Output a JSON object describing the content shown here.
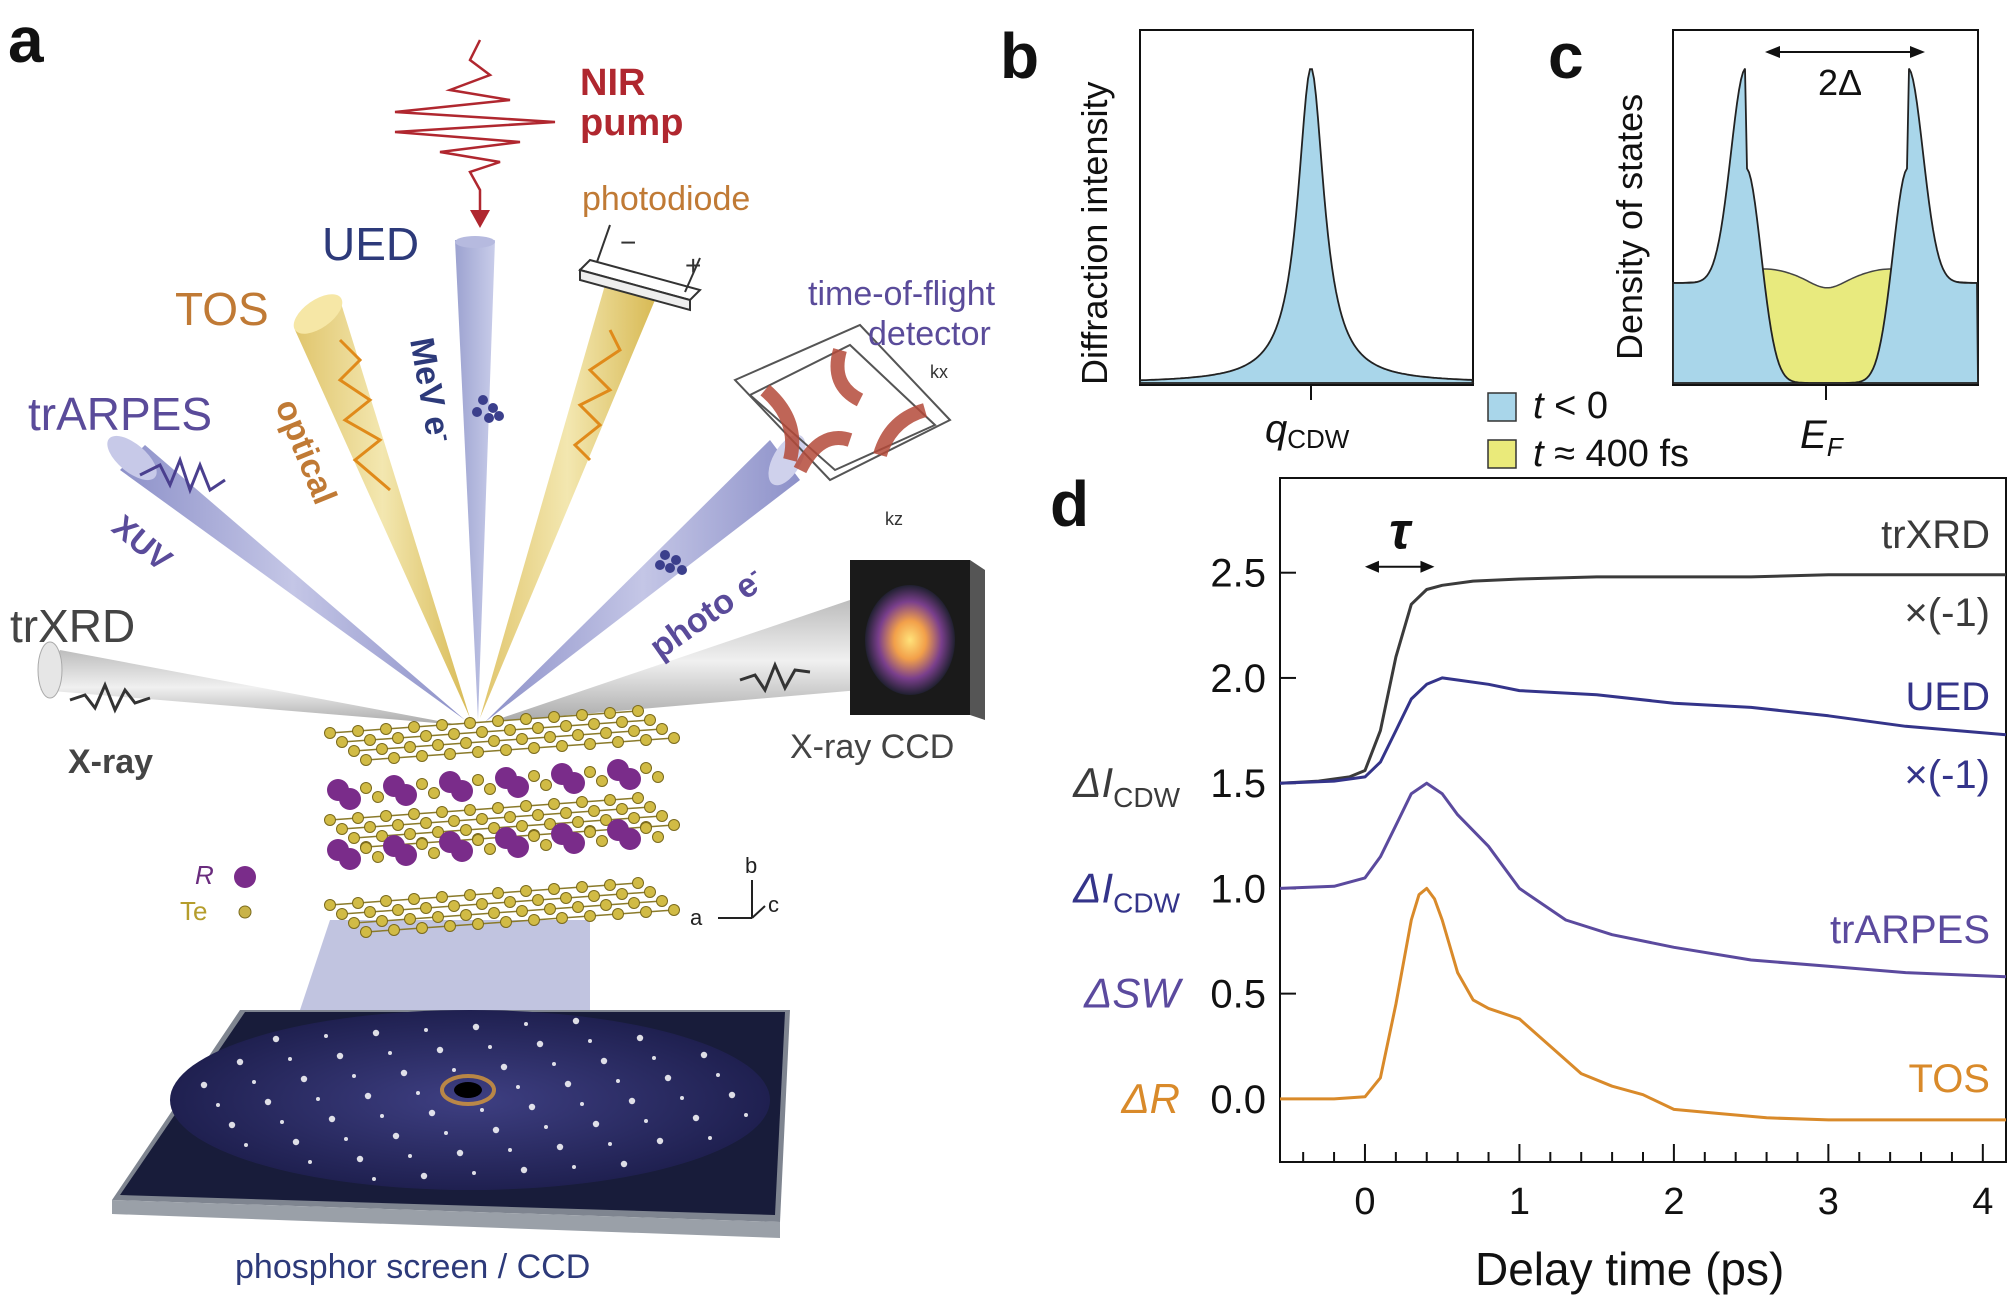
{
  "panel_labels": {
    "a": "a",
    "b": "b",
    "c": "c",
    "d": "d"
  },
  "panel_a": {
    "pump_line1": "NIR",
    "pump_line2": "pump",
    "photodiode": "photodiode",
    "ued": "UED",
    "mev": "MeV e",
    "mev_sup": "-",
    "tos": "TOS",
    "optical": "optical",
    "trarpes": "trARPES",
    "xuv": "XUV",
    "tof_line1": "time-of-flight",
    "tof_line2": "detector",
    "photo_e": "photo e",
    "photo_e_sup": "-",
    "trxrd": "trXRD",
    "xray": "X-ray",
    "xray_ccd": "X-ray CCD",
    "legend_r": "R",
    "legend_te": "Te",
    "axis_b": "b",
    "axis_a": "a",
    "axis_c": "c",
    "kx": "kx",
    "kz": "kz",
    "minus": "−",
    "plus": "+",
    "screen": "phosphor screen / CCD",
    "colors": {
      "pump": "#b0272f",
      "ued": "#2d3a7a",
      "tos": "#c07a35",
      "arpes": "#5a4b9a",
      "xrd": "#444444",
      "screen": "#2d3a7a"
    }
  },
  "panel_b": {
    "ylabel": "Diffraction intensity",
    "xlabel_main": "q",
    "xlabel_sub": "CDW"
  },
  "panel_c": {
    "ylabel": "Density of states",
    "gap": "2Δ",
    "xlabel_main": "E",
    "xlabel_sub": "F"
  },
  "legend_bc": [
    {
      "label_t": "t",
      "label_rest": " < 0",
      "color": "#a9d6ea"
    },
    {
      "label_t": "t",
      "label_rest": " ≈ 400 fs",
      "color": "#eaea7a"
    }
  ],
  "chart_data": {
    "type": "line",
    "xlabel": "Delay time (ps)",
    "xlim": [
      -0.55,
      4.15
    ],
    "ylim": [
      -0.3,
      2.95
    ],
    "xticks": [
      "0",
      "1",
      "2",
      "3",
      "4"
    ],
    "yticks": [
      "0.0",
      "0.5",
      "1.0",
      "1.5",
      "2.0",
      "2.5"
    ],
    "tau_label": "τ",
    "series": [
      {
        "name": "trXRD",
        "note": "×(-1)",
        "ylabel_main": "ΔI",
        "ylabel_sub": "CDW",
        "color": "#3b3b3b",
        "x": [
          -0.55,
          -0.3,
          -0.1,
          0.0,
          0.1,
          0.2,
          0.3,
          0.4,
          0.5,
          0.7,
          1.0,
          1.5,
          2.0,
          2.5,
          3.0,
          3.5,
          4.15
        ],
        "y": [
          1.5,
          1.51,
          1.53,
          1.56,
          1.75,
          2.1,
          2.35,
          2.42,
          2.44,
          2.46,
          2.47,
          2.48,
          2.48,
          2.48,
          2.49,
          2.49,
          2.49
        ]
      },
      {
        "name": "UED",
        "note": "×(-1)",
        "ylabel_main": "ΔI",
        "ylabel_sub": "CDW",
        "color": "#34348a",
        "x": [
          -0.55,
          -0.2,
          0.0,
          0.1,
          0.2,
          0.3,
          0.4,
          0.5,
          0.6,
          0.8,
          1.0,
          1.5,
          2.0,
          2.5,
          3.0,
          3.5,
          4.15
        ],
        "y": [
          1.5,
          1.51,
          1.53,
          1.6,
          1.75,
          1.9,
          1.97,
          2.0,
          1.99,
          1.97,
          1.94,
          1.92,
          1.88,
          1.86,
          1.82,
          1.77,
          1.73
        ]
      },
      {
        "name": "trARPES",
        "ylabel_main": "ΔSW",
        "color": "#5b4a9e",
        "x": [
          -0.55,
          -0.2,
          0.0,
          0.1,
          0.2,
          0.3,
          0.4,
          0.5,
          0.6,
          0.8,
          1.0,
          1.3,
          1.6,
          2.0,
          2.5,
          3.0,
          3.5,
          4.15
        ],
        "y": [
          1.0,
          1.01,
          1.05,
          1.15,
          1.3,
          1.45,
          1.5,
          1.45,
          1.35,
          1.2,
          1.0,
          0.85,
          0.78,
          0.72,
          0.66,
          0.63,
          0.6,
          0.58
        ]
      },
      {
        "name": "TOS",
        "ylabel_main": "ΔR",
        "color": "#d98a2a",
        "x": [
          -0.55,
          -0.2,
          0.0,
          0.1,
          0.2,
          0.3,
          0.35,
          0.4,
          0.45,
          0.5,
          0.6,
          0.7,
          0.8,
          1.0,
          1.2,
          1.4,
          1.6,
          1.8,
          2.0,
          2.3,
          2.6,
          3.0,
          3.5,
          4.15
        ],
        "y": [
          0.0,
          0.0,
          0.01,
          0.1,
          0.45,
          0.85,
          0.97,
          1.0,
          0.95,
          0.85,
          0.6,
          0.47,
          0.43,
          0.38,
          0.25,
          0.12,
          0.06,
          0.02,
          -0.05,
          -0.07,
          -0.09,
          -0.1,
          -0.1,
          -0.1
        ]
      }
    ]
  }
}
